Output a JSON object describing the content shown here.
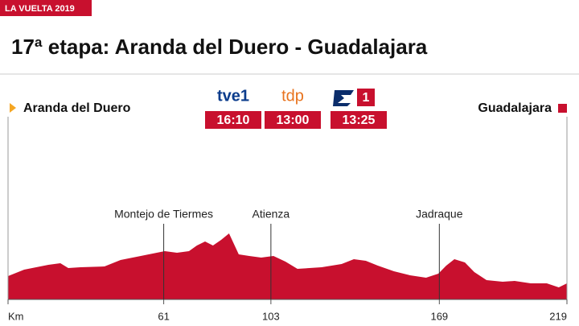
{
  "header": {
    "badge": "LA VUELTA 2019",
    "title": "17ª etapa: Aranda del Duero - Guadalajara",
    "start": "Aranda del Duero",
    "finish": "Guadalajara"
  },
  "broadcasters": [
    {
      "name": "tve1",
      "time": "16:10"
    },
    {
      "name": "tdp",
      "time": "13:00"
    },
    {
      "name": "1",
      "time": "13:25"
    }
  ],
  "chart_data": {
    "type": "area",
    "color": "#c8102e",
    "x": [
      0,
      6.3,
      15.8,
      20.5,
      23.6,
      28.4,
      37.8,
      44.1,
      52.0,
      61.4,
      66.2,
      70.9,
      74.0,
      77.2,
      80.3,
      83.5,
      86.6,
      90.4,
      94.5,
      99.2,
      104.0,
      108.7,
      113.4,
      122.9,
      130.7,
      135.5,
      140.2,
      144.9,
      151.2,
      157.5,
      163.8,
      168.6,
      171.7,
      174.9,
      179.0,
      182.7,
      187.5,
      193.8,
      198.5,
      204.8,
      211.1,
      215.8,
      219
    ],
    "values": [
      29,
      37,
      43,
      45,
      39,
      40,
      41,
      49,
      54,
      60,
      58,
      60,
      67,
      72,
      67,
      74,
      82,
      56,
      54,
      52,
      54,
      47,
      38,
      40,
      44,
      50,
      48,
      42,
      35,
      30,
      27,
      32,
      42,
      50,
      46,
      34,
      24,
      22,
      23,
      20,
      20,
      15,
      20
    ],
    "xlim": [
      0,
      219
    ],
    "ylim": [
      0,
      100
    ],
    "xticks": [
      {
        "value": 0,
        "label": "Km"
      },
      61,
      103,
      169,
      219
    ],
    "markers": [
      {
        "x": 61,
        "label": "Montejo de Tiermes"
      },
      {
        "x": 103,
        "label": "Atienza"
      },
      {
        "x": 169,
        "label": "Jadraque"
      }
    ]
  }
}
